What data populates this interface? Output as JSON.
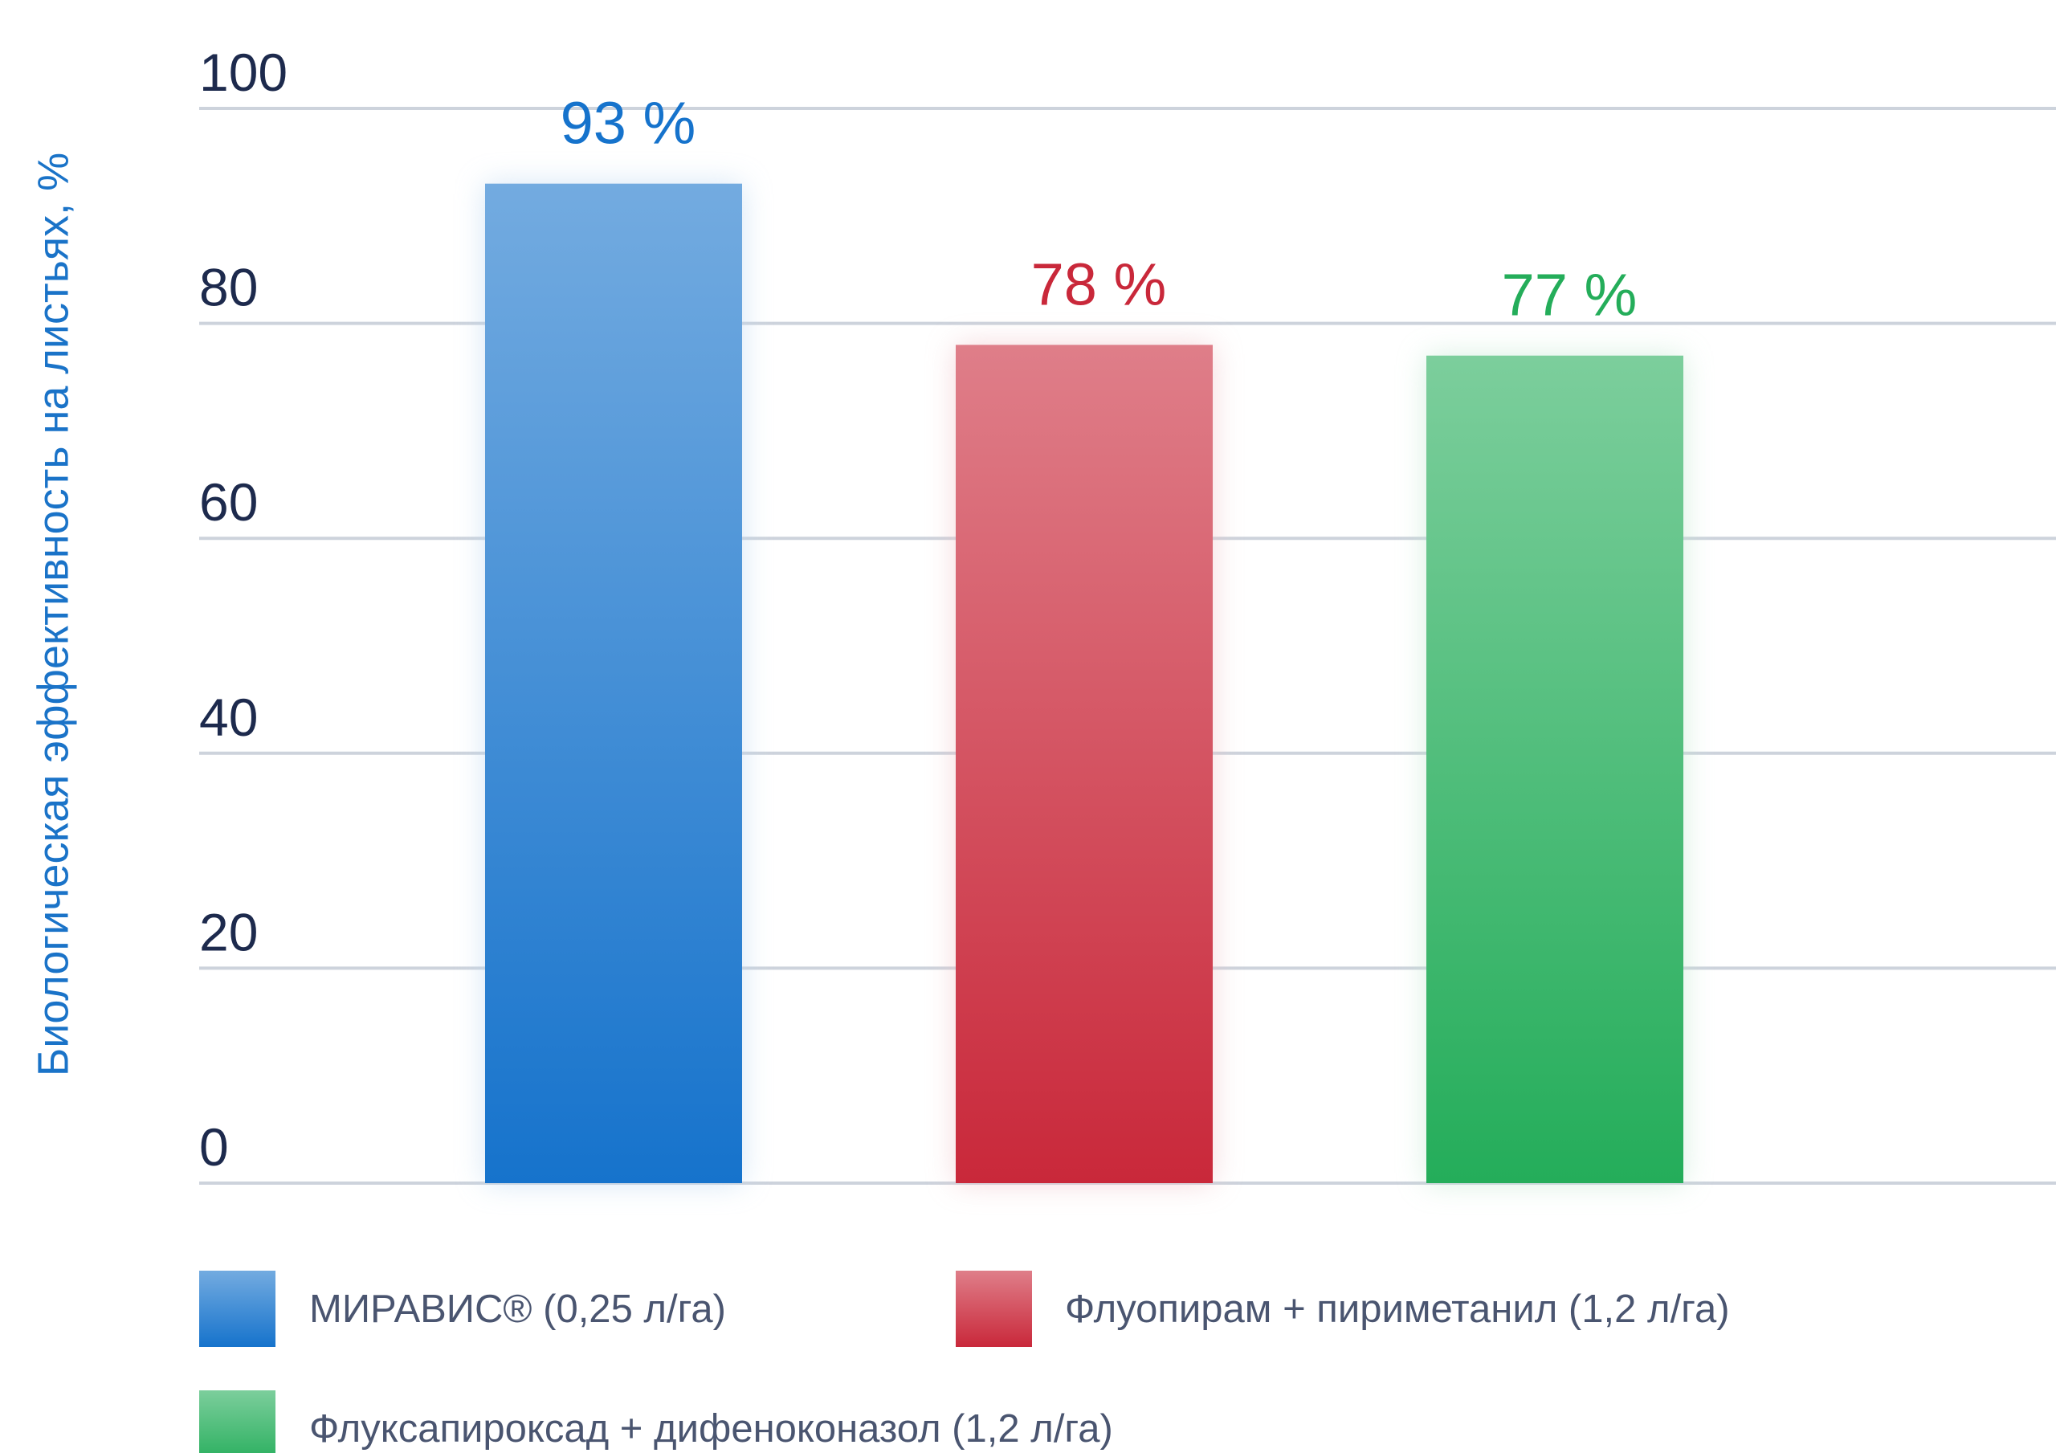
{
  "chart_data": {
    "type": "bar",
    "y_axis_label": "Биологическая эффективность на листьях, %",
    "ylim": [
      0,
      100
    ],
    "yticks": [
      0,
      20,
      40,
      60,
      80,
      100
    ],
    "grid": true,
    "series": [
      {
        "name": "МИРАВИС® (0,25 л/га)",
        "color": "#1673cc",
        "values": [
          93
        ],
        "value_labels": [
          "93 %"
        ]
      },
      {
        "name": "Флуопирам + пириметанил (1,2 л/га)",
        "color": "#c9283a",
        "values": [
          78
        ],
        "value_labels": [
          "78 %"
        ]
      },
      {
        "name": "Флуксапироксад + дифеноконазол (1,2 л/га)",
        "color": "#24ad5a",
        "values": [
          77
        ],
        "value_labels": [
          "77 %"
        ]
      }
    ]
  }
}
